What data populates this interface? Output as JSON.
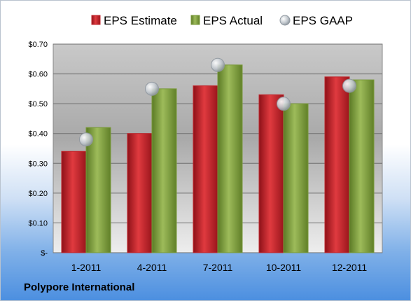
{
  "footer": {
    "company": "Polypore International"
  },
  "colors": {
    "estimate": "#c0262c",
    "actual": "#7a9a3a",
    "gaap": "#a9b2bb"
  },
  "chart_data": {
    "type": "bar",
    "categories": [
      "1-2011",
      "4-2011",
      "7-2011",
      "10-2011",
      "12-2011"
    ],
    "series": [
      {
        "name": "EPS Estimate",
        "type": "bar",
        "values": [
          0.34,
          0.4,
          0.56,
          0.53,
          0.59
        ]
      },
      {
        "name": "EPS Actual",
        "type": "bar",
        "values": [
          0.42,
          0.55,
          0.63,
          0.5,
          0.58
        ]
      },
      {
        "name": "EPS GAAP",
        "type": "scatter",
        "values": [
          0.38,
          0.55,
          0.63,
          0.5,
          0.56
        ]
      }
    ],
    "ylim": [
      0,
      0.7
    ],
    "yticks": [
      0,
      0.1,
      0.2,
      0.3,
      0.4,
      0.5,
      0.6,
      0.7
    ],
    "ytick_labels": [
      "$-",
      "$0.10",
      "$0.20",
      "$0.30",
      "$0.40",
      "$0.50",
      "$0.60",
      "$0.70"
    ],
    "grid": true,
    "legend_position": "top"
  }
}
